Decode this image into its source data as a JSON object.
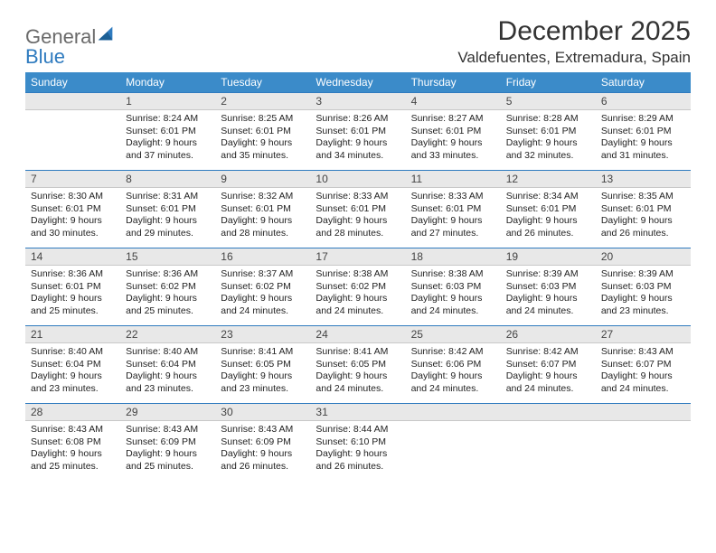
{
  "logo": {
    "word1": "General",
    "word2": "Blue"
  },
  "title": "December 2025",
  "location": "Valdefuentes, Extremadura, Spain",
  "colors": {
    "header_bg": "#3b8bc9",
    "header_text": "#ffffff",
    "daybar_bg": "#e8e8e8",
    "daybar_border_top": "#2f7bbf",
    "body_text": "#222222",
    "logo_gray": "#6a6a6a",
    "logo_blue": "#2f7bbf"
  },
  "weekdays": [
    "Sunday",
    "Monday",
    "Tuesday",
    "Wednesday",
    "Thursday",
    "Friday",
    "Saturday"
  ],
  "grid": [
    [
      {
        "n": "",
        "sr": "",
        "ss": "",
        "dl": ""
      },
      {
        "n": "1",
        "sr": "8:24 AM",
        "ss": "6:01 PM",
        "dl": "9 hours and 37 minutes."
      },
      {
        "n": "2",
        "sr": "8:25 AM",
        "ss": "6:01 PM",
        "dl": "9 hours and 35 minutes."
      },
      {
        "n": "3",
        "sr": "8:26 AM",
        "ss": "6:01 PM",
        "dl": "9 hours and 34 minutes."
      },
      {
        "n": "4",
        "sr": "8:27 AM",
        "ss": "6:01 PM",
        "dl": "9 hours and 33 minutes."
      },
      {
        "n": "5",
        "sr": "8:28 AM",
        "ss": "6:01 PM",
        "dl": "9 hours and 32 minutes."
      },
      {
        "n": "6",
        "sr": "8:29 AM",
        "ss": "6:01 PM",
        "dl": "9 hours and 31 minutes."
      }
    ],
    [
      {
        "n": "7",
        "sr": "8:30 AM",
        "ss": "6:01 PM",
        "dl": "9 hours and 30 minutes."
      },
      {
        "n": "8",
        "sr": "8:31 AM",
        "ss": "6:01 PM",
        "dl": "9 hours and 29 minutes."
      },
      {
        "n": "9",
        "sr": "8:32 AM",
        "ss": "6:01 PM",
        "dl": "9 hours and 28 minutes."
      },
      {
        "n": "10",
        "sr": "8:33 AM",
        "ss": "6:01 PM",
        "dl": "9 hours and 28 minutes."
      },
      {
        "n": "11",
        "sr": "8:33 AM",
        "ss": "6:01 PM",
        "dl": "9 hours and 27 minutes."
      },
      {
        "n": "12",
        "sr": "8:34 AM",
        "ss": "6:01 PM",
        "dl": "9 hours and 26 minutes."
      },
      {
        "n": "13",
        "sr": "8:35 AM",
        "ss": "6:01 PM",
        "dl": "9 hours and 26 minutes."
      }
    ],
    [
      {
        "n": "14",
        "sr": "8:36 AM",
        "ss": "6:01 PM",
        "dl": "9 hours and 25 minutes."
      },
      {
        "n": "15",
        "sr": "8:36 AM",
        "ss": "6:02 PM",
        "dl": "9 hours and 25 minutes."
      },
      {
        "n": "16",
        "sr": "8:37 AM",
        "ss": "6:02 PM",
        "dl": "9 hours and 24 minutes."
      },
      {
        "n": "17",
        "sr": "8:38 AM",
        "ss": "6:02 PM",
        "dl": "9 hours and 24 minutes."
      },
      {
        "n": "18",
        "sr": "8:38 AM",
        "ss": "6:03 PM",
        "dl": "9 hours and 24 minutes."
      },
      {
        "n": "19",
        "sr": "8:39 AM",
        "ss": "6:03 PM",
        "dl": "9 hours and 24 minutes."
      },
      {
        "n": "20",
        "sr": "8:39 AM",
        "ss": "6:03 PM",
        "dl": "9 hours and 23 minutes."
      }
    ],
    [
      {
        "n": "21",
        "sr": "8:40 AM",
        "ss": "6:04 PM",
        "dl": "9 hours and 23 minutes."
      },
      {
        "n": "22",
        "sr": "8:40 AM",
        "ss": "6:04 PM",
        "dl": "9 hours and 23 minutes."
      },
      {
        "n": "23",
        "sr": "8:41 AM",
        "ss": "6:05 PM",
        "dl": "9 hours and 23 minutes."
      },
      {
        "n": "24",
        "sr": "8:41 AM",
        "ss": "6:05 PM",
        "dl": "9 hours and 24 minutes."
      },
      {
        "n": "25",
        "sr": "8:42 AM",
        "ss": "6:06 PM",
        "dl": "9 hours and 24 minutes."
      },
      {
        "n": "26",
        "sr": "8:42 AM",
        "ss": "6:07 PM",
        "dl": "9 hours and 24 minutes."
      },
      {
        "n": "27",
        "sr": "8:43 AM",
        "ss": "6:07 PM",
        "dl": "9 hours and 24 minutes."
      }
    ],
    [
      {
        "n": "28",
        "sr": "8:43 AM",
        "ss": "6:08 PM",
        "dl": "9 hours and 25 minutes."
      },
      {
        "n": "29",
        "sr": "8:43 AM",
        "ss": "6:09 PM",
        "dl": "9 hours and 25 minutes."
      },
      {
        "n": "30",
        "sr": "8:43 AM",
        "ss": "6:09 PM",
        "dl": "9 hours and 26 minutes."
      },
      {
        "n": "31",
        "sr": "8:44 AM",
        "ss": "6:10 PM",
        "dl": "9 hours and 26 minutes."
      },
      {
        "n": "",
        "sr": "",
        "ss": "",
        "dl": ""
      },
      {
        "n": "",
        "sr": "",
        "ss": "",
        "dl": ""
      },
      {
        "n": "",
        "sr": "",
        "ss": "",
        "dl": ""
      }
    ]
  ],
  "labels": {
    "sunrise": "Sunrise:",
    "sunset": "Sunset:",
    "daylight": "Daylight:"
  }
}
